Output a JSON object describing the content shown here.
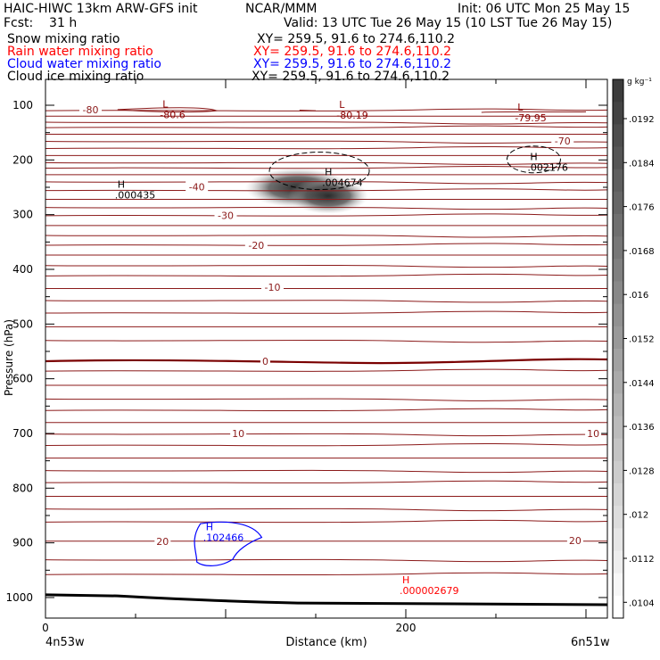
{
  "header": {
    "line1_left": "HAIC-HIWC 13km ARW-GFS init",
    "line1_center": "NCAR/MMM",
    "line1_right": "Init: 06 UTC Mon 25 May 15",
    "line2_left": "Fcst:    31 h",
    "line2_right": "Valid: 13 UTC Tue 26 May 15 (10 LST Tue 26 May 15)"
  },
  "fields": [
    {
      "name": "Snow mixing ratio",
      "xy": "XY= 259.5, 91.6 to 274.6,110.2",
      "color": "#000000"
    },
    {
      "name": "Rain water mixing ratio",
      "xy": "XY= 259.5, 91.6 to 274.6,110.2",
      "color": "#ff0000"
    },
    {
      "name": "Cloud water mixing ratio",
      "xy": "XY= 259.5, 91.6 to 274.6,110.2",
      "color": "#0000ff"
    },
    {
      "name": "Cloud ice mixing ratio",
      "xy": "XY= 259.5, 91.6 to 274.6,110.2",
      "color": "#000000"
    }
  ],
  "footer": {
    "left_point": "4n53w",
    "right_point": "6n51w"
  },
  "chart_data": {
    "type": "heatmap",
    "title": "",
    "xlabel": "Distance (km)",
    "ylabel": "Pressure (hPa)",
    "xlim": [
      0,
      300
    ],
    "ylim": [
      1050,
      50
    ],
    "xticks": [
      0,
      200
    ],
    "yticks": [
      100,
      200,
      300,
      400,
      500,
      600,
      700,
      800,
      900,
      1000
    ],
    "colorbar": {
      "unit": "g kg⁻¹",
      "ticks": [
        ".0192",
        ".0184",
        ".0176",
        ".0168",
        ".016",
        ".0152",
        ".0144",
        ".0136",
        ".0128",
        ".012",
        ".0112",
        ".0104"
      ]
    },
    "isotherm_labels": [
      {
        "text": "-80",
        "x": 25,
        "p": 108
      },
      {
        "text": "-70",
        "x": 287,
        "p": 165
      },
      {
        "text": "-40",
        "x": 84,
        "p": 249
      },
      {
        "text": "-30",
        "x": 100,
        "p": 301
      },
      {
        "text": "-20",
        "x": 117,
        "p": 356
      },
      {
        "text": "-10",
        "x": 126,
        "p": 433
      },
      {
        "text": "0",
        "x": 122,
        "p": 568
      },
      {
        "text": "10",
        "x": 107,
        "p": 700
      },
      {
        "text": "10",
        "x": 304,
        "p": 700
      },
      {
        "text": "20",
        "x": 65,
        "p": 897
      },
      {
        "text": "20",
        "x": 294,
        "p": 896
      }
    ],
    "extrema": [
      {
        "type": "L",
        "value": "-80.6",
        "x": 65,
        "p": 109,
        "color": "#8b0000"
      },
      {
        "type": "L",
        "value": "-80.19",
        "x": 163,
        "p": 110,
        "color": "#8b0000"
      },
      {
        "type": "L",
        "value": "-79.95",
        "x": 262,
        "p": 115,
        "color": "#8b0000"
      },
      {
        "type": "H",
        "value": ".000435",
        "x": 40,
        "p": 256,
        "color": "#000000"
      },
      {
        "type": "H",
        "value": ".004674",
        "x": 155,
        "p": 233,
        "color": "#000000"
      },
      {
        "type": "H",
        "value": ".002176",
        "x": 269,
        "p": 205,
        "color": "#000000"
      },
      {
        "type": "H",
        "value": ".102466",
        "x": 89,
        "p": 882,
        "color": "#0000ff"
      },
      {
        "type": "H",
        "value": ".000002679",
        "x": 198,
        "p": 979,
        "color": "#ff0000"
      }
    ],
    "max_snow_mixing_ratio": 0.004674,
    "shaded_region": {
      "x_range": [
        108,
        180
      ],
      "p_range": [
        215,
        300
      ]
    }
  }
}
